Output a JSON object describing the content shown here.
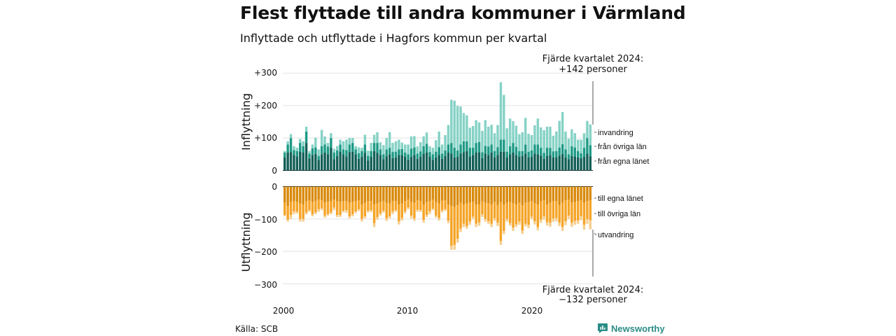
{
  "title": "Flest flyttade till andra kommuner i Värmland",
  "subtitle": "Inflyttade och utflyttade i Hagfors kommun per kvartal",
  "source": "Källa: SCB",
  "brand": {
    "name": "Newsworthy",
    "icon": "bar-chart-icon",
    "color": "#2a8c86"
  },
  "chart_data": {
    "type": "bar",
    "x_start": "2000 Q1",
    "x_end": "2024 Q4",
    "x_ticks": [
      "2000",
      "2010",
      "2020"
    ],
    "colors": {
      "in_own": "#135f57",
      "in_other": "#1e9a86",
      "in_immig": "#86d2c6",
      "out_own": "#d98a0c",
      "out_other": "#f5a427",
      "out_emig": "#f7cf90"
    },
    "inflyttning": {
      "ylabel": "Inflyttning",
      "yticks": [
        "+300",
        "+200",
        "+100",
        "0"
      ],
      "ylim": [
        0,
        300
      ],
      "series_names": [
        "från egna länet",
        "från övriga län",
        "invandring"
      ],
      "annotation_line1": "Fjärde kvartalet 2024:",
      "annotation_line2": "+142 personer",
      "from_own_county": [
        40,
        55,
        57,
        48,
        43,
        58,
        55,
        85,
        37,
        48,
        51,
        33,
        50,
        55,
        50,
        70,
        35,
        45,
        58,
        50,
        43,
        57,
        58,
        50,
        36,
        42,
        54,
        31,
        42,
        60,
        54,
        48,
        35,
        44,
        50,
        38,
        40,
        48,
        48,
        42,
        33,
        42,
        48,
        36,
        42,
        52,
        55,
        42,
        33,
        40,
        48,
        36,
        45,
        55,
        52,
        40,
        42,
        52,
        56,
        60,
        43,
        48,
        55,
        56,
        38,
        52,
        48,
        55,
        40,
        48,
        58,
        58,
        40,
        50,
        55,
        48,
        43,
        45,
        52,
        40,
        42,
        52,
        50,
        46,
        36,
        45,
        48,
        40,
        40,
        46,
        51,
        40,
        35,
        45,
        43,
        40,
        38,
        42,
        52,
        44
      ],
      "from_other_counties": [
        15,
        25,
        43,
        15,
        17,
        27,
        20,
        35,
        15,
        20,
        20,
        12,
        25,
        25,
        24,
        30,
        20,
        17,
        22,
        15,
        20,
        23,
        27,
        15,
        17,
        18,
        26,
        14,
        18,
        25,
        31,
        17,
        15,
        21,
        20,
        19,
        18,
        17,
        18,
        13,
        17,
        25,
        23,
        16,
        17,
        23,
        27,
        15,
        17,
        18,
        24,
        16,
        17,
        25,
        33,
        30,
        20,
        28,
        34,
        30,
        27,
        22,
        30,
        32,
        18,
        24,
        26,
        25,
        20,
        24,
        37,
        37,
        18,
        25,
        30,
        25,
        17,
        15,
        28,
        18,
        20,
        28,
        30,
        24,
        18,
        25,
        22,
        19,
        20,
        25,
        30,
        25,
        15,
        30,
        28,
        20,
        15,
        28,
        48,
        34
      ],
      "immigration": [
        5,
        10,
        12,
        12,
        10,
        12,
        15,
        15,
        8,
        12,
        30,
        20,
        50,
        25,
        11,
        15,
        12,
        13,
        15,
        25,
        32,
        20,
        15,
        10,
        18,
        10,
        30,
        16,
        25,
        25,
        33,
        22,
        28,
        35,
        48,
        28,
        32,
        30,
        20,
        25,
        30,
        38,
        35,
        22,
        28,
        30,
        35,
        18,
        20,
        35,
        48,
        28,
        47,
        60,
        133,
        145,
        137,
        117,
        87,
        80,
        62,
        67,
        70,
        60,
        66,
        79,
        61,
        61,
        55,
        68,
        177,
        138,
        72,
        85,
        67,
        65,
        52,
        58,
        82,
        55,
        47,
        59,
        80,
        63,
        70,
        65,
        65,
        48,
        60,
        82,
        99,
        55,
        48,
        52,
        44,
        35,
        42,
        45,
        53,
        64
      ]
    },
    "utflyttning": {
      "ylabel": "Utflyttning",
      "yticks": [
        "0",
        "−100",
        "−200",
        "−300"
      ],
      "ylim": [
        -300,
        0
      ],
      "series_names": [
        "till egna länet",
        "till övriga län",
        "utvandring"
      ],
      "annotation_line1": "Fjärde kvartalet 2024:",
      "annotation_line2": "−132 personer",
      "to_own_county": [
        50,
        60,
        48,
        45,
        48,
        52,
        55,
        45,
        43,
        48,
        45,
        40,
        42,
        50,
        47,
        45,
        40,
        46,
        48,
        45,
        45,
        50,
        48,
        45,
        42,
        55,
        50,
        45,
        45,
        55,
        52,
        48,
        45,
        50,
        52,
        45,
        45,
        55,
        52,
        45,
        40,
        48,
        50,
        42,
        45,
        55,
        48,
        45,
        40,
        48,
        52,
        44,
        42,
        55,
        60,
        63,
        57,
        50,
        55,
        52,
        50,
        48,
        55,
        55,
        46,
        50,
        52,
        55,
        48,
        57,
        48,
        55,
        50,
        48,
        52,
        55,
        50,
        58,
        50,
        48,
        45,
        52,
        55,
        46,
        42,
        55,
        50,
        45,
        45,
        57,
        50,
        42,
        40,
        50,
        48,
        45,
        42,
        50,
        45,
        42
      ],
      "to_other_counties": [
        38,
        42,
        40,
        32,
        30,
        48,
        45,
        35,
        30,
        38,
        35,
        30,
        25,
        40,
        38,
        35,
        25,
        42,
        40,
        30,
        28,
        42,
        38,
        32,
        28,
        45,
        42,
        30,
        28,
        58,
        42,
        35,
        30,
        48,
        40,
        32,
        28,
        52,
        45,
        32,
        25,
        42,
        48,
        30,
        28,
        48,
        40,
        32,
        28,
        42,
        45,
        30,
        28,
        50,
        123,
        117,
        104,
        80,
        60,
        70,
        58,
        45,
        60,
        56,
        40,
        50,
        55,
        60,
        50,
        55,
        120,
        82,
        50,
        65,
        75,
        62,
        58,
        78,
        65,
        70,
        48,
        55,
        70,
        56,
        50,
        55,
        62,
        54,
        52,
        55,
        75,
        65,
        50,
        62,
        58,
        60,
        50,
        68,
        55,
        62
      ],
      "emigration": [
        4,
        6,
        12,
        8,
        5,
        8,
        8,
        6,
        5,
        6,
        5,
        8,
        6,
        6,
        5,
        5,
        8,
        6,
        6,
        5,
        8,
        6,
        6,
        5,
        6,
        8,
        6,
        5,
        6,
        12,
        8,
        6,
        5,
        8,
        6,
        8,
        5,
        10,
        8,
        6,
        5,
        8,
        8,
        6,
        5,
        8,
        6,
        8,
        5,
        6,
        8,
        6,
        5,
        8,
        12,
        15,
        12,
        10,
        10,
        8,
        10,
        8,
        10,
        10,
        8,
        8,
        8,
        10,
        8,
        10,
        12,
        10,
        8,
        8,
        10,
        8,
        10,
        10,
        8,
        10,
        8,
        10,
        10,
        10,
        10,
        10,
        12,
        10,
        10,
        10,
        12,
        12,
        10,
        12,
        12,
        10,
        12,
        15,
        15,
        28
      ]
    }
  }
}
